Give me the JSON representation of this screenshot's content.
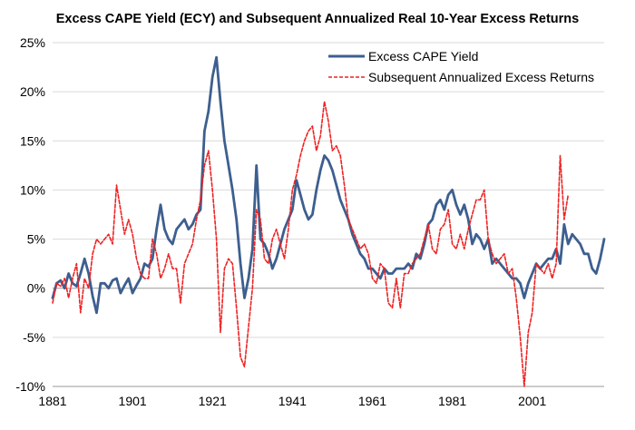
{
  "chart_data": {
    "type": "line",
    "title": "Excess CAPE Yield (ECY) and Subsequent Annualized Real 10-Year Excess Returns",
    "xlabel": "",
    "ylabel": "",
    "xlim": [
      1881,
      2019
    ],
    "ylim": [
      -10,
      25
    ],
    "y_ticks": [
      -10,
      -5,
      0,
      5,
      10,
      15,
      20,
      25
    ],
    "y_tick_labels": [
      "-10%",
      "-5%",
      "0%",
      "5%",
      "10%",
      "15%",
      "20%",
      "25%"
    ],
    "x_ticks": [
      1881,
      1901,
      1921,
      1941,
      1961,
      1981,
      2001
    ],
    "x_tick_labels": [
      "1881",
      "1901",
      "1921",
      "1941",
      "1961",
      "1981",
      "2001"
    ],
    "grid": "horizontal",
    "legend_position": "top-right",
    "series": [
      {
        "name": "Excess CAPE Yield",
        "color": "#3d5f8f",
        "style": "solid",
        "points": [
          [
            1881,
            -1.0
          ],
          [
            1882,
            0.5
          ],
          [
            1883,
            0.8
          ],
          [
            1884,
            0.0
          ],
          [
            1885,
            1.5
          ],
          [
            1886,
            0.5
          ],
          [
            1887,
            0.2
          ],
          [
            1888,
            1.5
          ],
          [
            1889,
            3.0
          ],
          [
            1890,
            1.5
          ],
          [
            1891,
            -0.8
          ],
          [
            1892,
            -2.5
          ],
          [
            1893,
            0.5
          ],
          [
            1894,
            0.5
          ],
          [
            1895,
            0.0
          ],
          [
            1896,
            0.8
          ],
          [
            1897,
            1.0
          ],
          [
            1898,
            -0.5
          ],
          [
            1899,
            0.3
          ],
          [
            1900,
            1.0
          ],
          [
            1901,
            -0.5
          ],
          [
            1902,
            0.3
          ],
          [
            1903,
            1.0
          ],
          [
            1904,
            2.5
          ],
          [
            1905,
            2.2
          ],
          [
            1906,
            3.0
          ],
          [
            1907,
            6.0
          ],
          [
            1908,
            8.5
          ],
          [
            1909,
            6.0
          ],
          [
            1910,
            5.0
          ],
          [
            1911,
            4.5
          ],
          [
            1912,
            6.0
          ],
          [
            1913,
            6.5
          ],
          [
            1914,
            7.0
          ],
          [
            1915,
            6.0
          ],
          [
            1916,
            6.5
          ],
          [
            1917,
            7.5
          ],
          [
            1918,
            8.0
          ],
          [
            1919,
            16.0
          ],
          [
            1920,
            18.0
          ],
          [
            1921,
            21.5
          ],
          [
            1922,
            23.5
          ],
          [
            1923,
            19.0
          ],
          [
            1924,
            15.0
          ],
          [
            1925,
            12.5
          ],
          [
            1926,
            10.0
          ],
          [
            1927,
            7.0
          ],
          [
            1928,
            2.5
          ],
          [
            1929,
            -1.0
          ],
          [
            1930,
            1.0
          ],
          [
            1931,
            4.0
          ],
          [
            1932,
            12.5
          ],
          [
            1933,
            5.0
          ],
          [
            1934,
            4.5
          ],
          [
            1935,
            3.5
          ],
          [
            1936,
            2.0
          ],
          [
            1937,
            3.0
          ],
          [
            1938,
            4.5
          ],
          [
            1939,
            6.0
          ],
          [
            1940,
            7.0
          ],
          [
            1941,
            8.0
          ],
          [
            1942,
            11.0
          ],
          [
            1943,
            9.5
          ],
          [
            1944,
            8.0
          ],
          [
            1945,
            7.0
          ],
          [
            1946,
            7.5
          ],
          [
            1947,
            10.0
          ],
          [
            1948,
            12.0
          ],
          [
            1949,
            13.5
          ],
          [
            1950,
            13.0
          ],
          [
            1951,
            12.0
          ],
          [
            1952,
            10.5
          ],
          [
            1953,
            9.0
          ],
          [
            1954,
            8.0
          ],
          [
            1955,
            7.0
          ],
          [
            1956,
            5.5
          ],
          [
            1957,
            4.5
          ],
          [
            1958,
            3.5
          ],
          [
            1959,
            3.0
          ],
          [
            1960,
            2.0
          ],
          [
            1961,
            2.0
          ],
          [
            1962,
            1.5
          ],
          [
            1963,
            1.0
          ],
          [
            1964,
            2.0
          ],
          [
            1965,
            1.5
          ],
          [
            1966,
            1.5
          ],
          [
            1967,
            2.0
          ],
          [
            1968,
            2.0
          ],
          [
            1969,
            2.0
          ],
          [
            1970,
            2.5
          ],
          [
            1971,
            2.0
          ],
          [
            1972,
            3.5
          ],
          [
            1973,
            3.0
          ],
          [
            1974,
            4.5
          ],
          [
            1975,
            6.5
          ],
          [
            1976,
            7.0
          ],
          [
            1977,
            8.5
          ],
          [
            1978,
            9.0
          ],
          [
            1979,
            8.0
          ],
          [
            1980,
            9.5
          ],
          [
            1981,
            10.0
          ],
          [
            1982,
            8.5
          ],
          [
            1983,
            7.5
          ],
          [
            1984,
            8.5
          ],
          [
            1985,
            7.0
          ],
          [
            1986,
            4.5
          ],
          [
            1987,
            5.5
          ],
          [
            1988,
            5.0
          ],
          [
            1989,
            4.0
          ],
          [
            1990,
            5.0
          ],
          [
            1991,
            2.5
          ],
          [
            1992,
            3.0
          ],
          [
            1993,
            2.5
          ],
          [
            1994,
            2.0
          ],
          [
            1995,
            1.5
          ],
          [
            1996,
            1.0
          ],
          [
            1997,
            1.0
          ],
          [
            1998,
            0.5
          ],
          [
            1999,
            -1.0
          ],
          [
            2000,
            0.5
          ],
          [
            2001,
            1.5
          ],
          [
            2002,
            2.5
          ],
          [
            2003,
            2.0
          ],
          [
            2004,
            2.5
          ],
          [
            2005,
            3.0
          ],
          [
            2006,
            3.0
          ],
          [
            2007,
            4.0
          ],
          [
            2008,
            2.5
          ],
          [
            2009,
            6.5
          ],
          [
            2010,
            4.5
          ],
          [
            2011,
            5.5
          ],
          [
            2012,
            5.0
          ],
          [
            2013,
            4.5
          ],
          [
            2014,
            3.5
          ],
          [
            2015,
            3.5
          ],
          [
            2016,
            2.0
          ],
          [
            2017,
            1.5
          ],
          [
            2018,
            3.0
          ],
          [
            2019,
            5.0
          ]
        ]
      },
      {
        "name": "Subsequent Annualized Excess Returns",
        "color": "#ee2222",
        "style": "dashed",
        "points": [
          [
            1881,
            -1.5
          ],
          [
            1882,
            0.5
          ],
          [
            1883,
            0.2
          ],
          [
            1884,
            1.0
          ],
          [
            1885,
            -1.0
          ],
          [
            1886,
            1.0
          ],
          [
            1887,
            2.5
          ],
          [
            1888,
            -2.5
          ],
          [
            1889,
            1.0
          ],
          [
            1890,
            0.0
          ],
          [
            1891,
            3.5
          ],
          [
            1892,
            5.0
          ],
          [
            1893,
            4.5
          ],
          [
            1894,
            5.0
          ],
          [
            1895,
            5.5
          ],
          [
            1896,
            4.5
          ],
          [
            1897,
            10.5
          ],
          [
            1898,
            8.0
          ],
          [
            1899,
            5.5
          ],
          [
            1900,
            7.0
          ],
          [
            1901,
            5.5
          ],
          [
            1902,
            3.0
          ],
          [
            1903,
            1.5
          ],
          [
            1904,
            1.0
          ],
          [
            1905,
            1.0
          ],
          [
            1906,
            5.0
          ],
          [
            1907,
            3.5
          ],
          [
            1908,
            1.0
          ],
          [
            1909,
            2.0
          ],
          [
            1910,
            3.5
          ],
          [
            1911,
            2.0
          ],
          [
            1912,
            2.0
          ],
          [
            1913,
            -1.5
          ],
          [
            1914,
            2.5
          ],
          [
            1915,
            3.5
          ],
          [
            1916,
            4.5
          ],
          [
            1917,
            7.0
          ],
          [
            1918,
            9.0
          ],
          [
            1919,
            12.5
          ],
          [
            1920,
            14.0
          ],
          [
            1921,
            10.0
          ],
          [
            1922,
            5.0
          ],
          [
            1923,
            -4.5
          ],
          [
            1924,
            2.0
          ],
          [
            1925,
            3.0
          ],
          [
            1926,
            2.5
          ],
          [
            1927,
            -2.0
          ],
          [
            1928,
            -7.0
          ],
          [
            1929,
            -8.0
          ],
          [
            1930,
            -4.0
          ],
          [
            1931,
            0.0
          ],
          [
            1932,
            8.0
          ],
          [
            1933,
            7.0
          ],
          [
            1934,
            3.0
          ],
          [
            1935,
            2.5
          ],
          [
            1936,
            5.0
          ],
          [
            1937,
            6.0
          ],
          [
            1938,
            4.5
          ],
          [
            1939,
            3.0
          ],
          [
            1940,
            6.0
          ],
          [
            1941,
            10.0
          ],
          [
            1942,
            11.5
          ],
          [
            1943,
            13.5
          ],
          [
            1944,
            15.0
          ],
          [
            1945,
            16.0
          ],
          [
            1946,
            16.5
          ],
          [
            1947,
            14.0
          ],
          [
            1948,
            15.5
          ],
          [
            1949,
            19.0
          ],
          [
            1950,
            17.0
          ],
          [
            1951,
            14.0
          ],
          [
            1952,
            14.5
          ],
          [
            1953,
            13.5
          ],
          [
            1954,
            10.5
          ],
          [
            1955,
            7.0
          ],
          [
            1956,
            6.0
          ],
          [
            1957,
            5.0
          ],
          [
            1958,
            4.0
          ],
          [
            1959,
            4.5
          ],
          [
            1960,
            3.5
          ],
          [
            1961,
            1.0
          ],
          [
            1962,
            0.5
          ],
          [
            1963,
            2.5
          ],
          [
            1964,
            2.0
          ],
          [
            1965,
            -1.5
          ],
          [
            1966,
            -2.0
          ],
          [
            1967,
            1.0
          ],
          [
            1968,
            -2.0
          ],
          [
            1969,
            1.5
          ],
          [
            1970,
            1.5
          ],
          [
            1971,
            2.5
          ],
          [
            1972,
            3.0
          ],
          [
            1973,
            3.5
          ],
          [
            1974,
            5.0
          ],
          [
            1975,
            6.5
          ],
          [
            1976,
            4.0
          ],
          [
            1977,
            3.5
          ],
          [
            1978,
            6.0
          ],
          [
            1979,
            6.5
          ],
          [
            1980,
            8.0
          ],
          [
            1981,
            4.5
          ],
          [
            1982,
            4.0
          ],
          [
            1983,
            5.5
          ],
          [
            1984,
            4.0
          ],
          [
            1985,
            6.0
          ],
          [
            1986,
            7.5
          ],
          [
            1987,
            9.0
          ],
          [
            1988,
            9.0
          ],
          [
            1989,
            10.0
          ],
          [
            1990,
            5.0
          ],
          [
            1991,
            3.5
          ],
          [
            1992,
            2.5
          ],
          [
            1993,
            3.0
          ],
          [
            1994,
            3.5
          ],
          [
            1995,
            1.5
          ],
          [
            1996,
            2.0
          ],
          [
            1997,
            -1.0
          ],
          [
            1998,
            -5.0
          ],
          [
            1999,
            -10.0
          ],
          [
            2000,
            -4.5
          ],
          [
            2001,
            -2.5
          ],
          [
            2002,
            2.5
          ],
          [
            2003,
            2.0
          ],
          [
            2004,
            1.5
          ],
          [
            2005,
            2.5
          ],
          [
            2006,
            1.0
          ],
          [
            2007,
            2.5
          ],
          [
            2008,
            13.5
          ],
          [
            2009,
            7.0
          ],
          [
            2010,
            9.5
          ]
        ]
      }
    ]
  }
}
